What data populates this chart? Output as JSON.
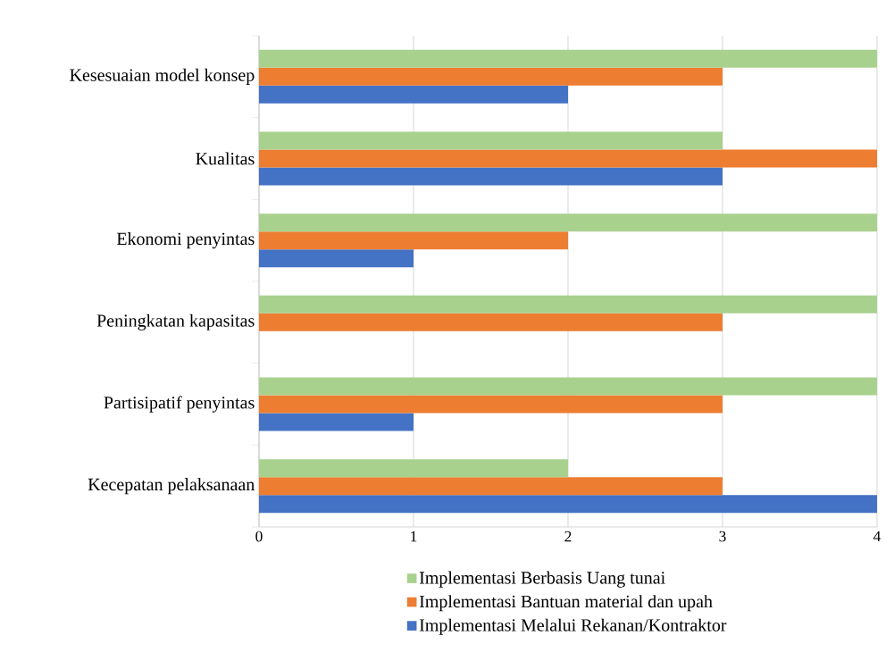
{
  "chart_data": {
    "type": "bar",
    "orientation": "horizontal",
    "categories": [
      "Kesesuaian model konsep",
      "Kualitas",
      "Ekonomi penyintas",
      "Peningkatan kapasitas",
      "Partisipatif penyintas",
      "Kecepatan pelaksanaan"
    ],
    "series": [
      {
        "name": "Implementasi Melalui Rekanan/Kontraktor",
        "color": "#4472c4",
        "values": [
          2,
          3,
          1,
          0,
          1,
          4
        ]
      },
      {
        "name": "Implementasi Bantuan material dan upah",
        "color": "#ed7d31",
        "values": [
          3,
          4,
          2,
          3,
          3,
          3
        ]
      },
      {
        "name": "Implementasi Berbasis Uang tunai",
        "color": "#a9d18e",
        "values": [
          4,
          3,
          4,
          4,
          4,
          2
        ]
      }
    ],
    "xlim": [
      0,
      4
    ],
    "xticks": [
      0,
      1,
      2,
      3,
      4
    ],
    "grid": "x",
    "legend": "bottom"
  }
}
